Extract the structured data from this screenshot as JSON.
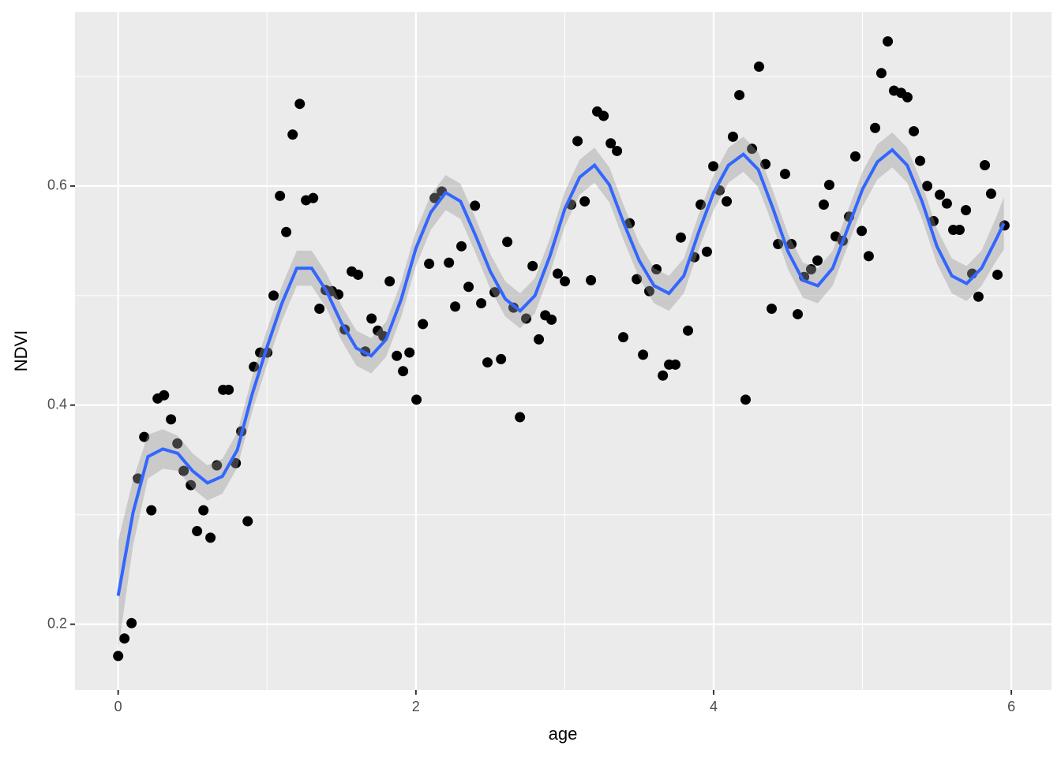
{
  "chart_data": {
    "type": "scatter",
    "x_label": "age",
    "y_label": "NDVI",
    "xlim": [
      -0.29,
      6.27
    ],
    "ylim": [
      0.14,
      0.759
    ],
    "xticks": [
      0,
      2,
      4,
      6
    ],
    "yticks": [
      0.2,
      0.4,
      0.6
    ],
    "xminor": [
      1,
      3,
      5
    ],
    "yminor": [
      0.3,
      0.5,
      0.7
    ],
    "grid": true,
    "panel_color": "#ebebeb",
    "points": {
      "color": "#000000",
      "x": [
        0,
        0.042,
        0.09,
        0.133,
        0.175,
        0.223,
        0.265,
        0.308,
        0.355,
        0.398,
        0.44,
        0.488,
        0.53,
        0.573,
        0.62,
        0.663,
        0.705,
        0.742,
        0.79,
        0.827,
        0.87,
        0.912,
        0.954,
        1.002,
        1.044,
        1.087,
        1.129,
        1.172,
        1.22,
        1.262,
        1.31,
        1.352,
        1.394,
        1.437,
        1.479,
        1.522,
        1.569,
        1.612,
        1.66,
        1.702,
        1.744,
        1.782,
        1.824,
        1.872,
        1.914,
        1.957,
        2.004,
        2.047,
        2.089,
        2.126,
        2.174,
        2.222,
        2.264,
        2.306,
        2.354,
        2.397,
        2.439,
        2.481,
        2.529,
        2.572,
        2.614,
        2.656,
        2.699,
        2.741,
        2.784,
        2.826,
        2.869,
        2.911,
        2.953,
        3.001,
        3.043,
        3.086,
        3.134,
        3.176,
        3.218,
        3.261,
        3.309,
        3.351,
        3.393,
        3.436,
        3.484,
        3.526,
        3.568,
        3.616,
        3.659,
        3.701,
        3.743,
        3.78,
        3.828,
        3.871,
        3.913,
        3.955,
        3.998,
        4.04,
        4.088,
        4.13,
        4.173,
        4.215,
        4.258,
        4.305,
        4.348,
        4.39,
        4.433,
        4.48,
        4.523,
        4.565,
        4.608,
        4.655,
        4.698,
        4.74,
        4.777,
        4.82,
        4.867,
        4.91,
        4.952,
        4.995,
        5.042,
        5.085,
        5.127,
        5.17,
        5.212,
        5.26,
        5.302,
        5.345,
        5.387,
        5.435,
        5.477,
        5.52,
        5.567,
        5.61,
        5.652,
        5.695,
        5.737,
        5.779,
        5.822,
        5.864,
        5.907,
        5.954
      ],
      "y": [
        0.171,
        0.187,
        0.201,
        0.333,
        0.371,
        0.304,
        0.406,
        0.409,
        0.387,
        0.365,
        0.34,
        0.327,
        0.285,
        0.304,
        0.279,
        0.345,
        0.414,
        0.414,
        0.347,
        0.376,
        0.294,
        0.435,
        0.448,
        0.448,
        0.5,
        0.591,
        0.558,
        0.647,
        0.675,
        0.587,
        0.589,
        0.488,
        0.505,
        0.504,
        0.501,
        0.469,
        0.522,
        0.519,
        0.449,
        0.479,
        0.468,
        0.463,
        0.513,
        0.445,
        0.431,
        0.448,
        0.405,
        0.474,
        0.529,
        0.589,
        0.595,
        0.53,
        0.49,
        0.545,
        0.508,
        0.582,
        0.493,
        0.439,
        0.503,
        0.442,
        0.549,
        0.489,
        0.389,
        0.479,
        0.527,
        0.46,
        0.482,
        0.478,
        0.52,
        0.513,
        0.583,
        0.641,
        0.586,
        0.514,
        0.668,
        0.664,
        0.639,
        0.632,
        0.462,
        0.566,
        0.515,
        0.446,
        0.504,
        0.524,
        0.427,
        0.437,
        0.437,
        0.553,
        0.468,
        0.535,
        0.583,
        0.54,
        0.618,
        0.596,
        0.586,
        0.645,
        0.683,
        0.405,
        0.634,
        0.709,
        0.62,
        0.488,
        0.547,
        0.611,
        0.547,
        0.483,
        0.517,
        0.524,
        0.532,
        0.583,
        0.601,
        0.554,
        0.55,
        0.572,
        0.627,
        0.559,
        0.536,
        0.653,
        0.703,
        0.732,
        0.687,
        0.685,
        0.681,
        0.65,
        0.623,
        0.6,
        0.568,
        0.592,
        0.584,
        0.56,
        0.56,
        0.578,
        0.52,
        0.499,
        0.619,
        0.593,
        0.519,
        0.564
      ]
    },
    "smooth": {
      "color": "#3366ff",
      "band_color": "#999999",
      "x": [
        0,
        0.1,
        0.2,
        0.3,
        0.4,
        0.5,
        0.6,
        0.7,
        0.8,
        0.9,
        1.0,
        1.1,
        1.2,
        1.3,
        1.4,
        1.5,
        1.6,
        1.7,
        1.8,
        1.9,
        2.0,
        2.1,
        2.2,
        2.3,
        2.4,
        2.5,
        2.6,
        2.7,
        2.8,
        2.9,
        3.0,
        3.1,
        3.2,
        3.3,
        3.4,
        3.5,
        3.6,
        3.7,
        3.8,
        3.9,
        4.0,
        4.1,
        4.2,
        4.3,
        4.4,
        4.5,
        4.6,
        4.7,
        4.8,
        4.9,
        5.0,
        5.1,
        5.2,
        5.3,
        5.4,
        5.5,
        5.6,
        5.7,
        5.8,
        5.9,
        5.95
      ],
      "y": [
        0.226,
        0.302,
        0.353,
        0.36,
        0.356,
        0.34,
        0.329,
        0.335,
        0.359,
        0.41,
        0.453,
        0.493,
        0.525,
        0.525,
        0.504,
        0.475,
        0.452,
        0.445,
        0.46,
        0.496,
        0.543,
        0.576,
        0.594,
        0.586,
        0.555,
        0.522,
        0.497,
        0.486,
        0.5,
        0.536,
        0.579,
        0.608,
        0.619,
        0.601,
        0.565,
        0.532,
        0.509,
        0.502,
        0.518,
        0.558,
        0.594,
        0.619,
        0.629,
        0.615,
        0.579,
        0.54,
        0.514,
        0.509,
        0.525,
        0.561,
        0.597,
        0.622,
        0.633,
        0.619,
        0.586,
        0.545,
        0.518,
        0.511,
        0.525,
        0.552,
        0.566
      ],
      "lower": [
        0.176,
        0.272,
        0.333,
        0.342,
        0.34,
        0.324,
        0.313,
        0.319,
        0.343,
        0.394,
        0.437,
        0.477,
        0.509,
        0.509,
        0.488,
        0.459,
        0.436,
        0.429,
        0.444,
        0.48,
        0.527,
        0.56,
        0.578,
        0.57,
        0.539,
        0.506,
        0.481,
        0.47,
        0.484,
        0.52,
        0.563,
        0.592,
        0.603,
        0.585,
        0.549,
        0.516,
        0.493,
        0.486,
        0.502,
        0.542,
        0.578,
        0.603,
        0.613,
        0.599,
        0.563,
        0.524,
        0.498,
        0.493,
        0.509,
        0.545,
        0.581,
        0.606,
        0.617,
        0.603,
        0.57,
        0.529,
        0.502,
        0.495,
        0.509,
        0.532,
        0.542
      ],
      "upper": [
        0.276,
        0.332,
        0.373,
        0.378,
        0.372,
        0.356,
        0.345,
        0.351,
        0.375,
        0.426,
        0.469,
        0.509,
        0.541,
        0.541,
        0.52,
        0.491,
        0.468,
        0.461,
        0.476,
        0.512,
        0.559,
        0.592,
        0.61,
        0.602,
        0.571,
        0.538,
        0.513,
        0.502,
        0.516,
        0.552,
        0.595,
        0.624,
        0.635,
        0.617,
        0.581,
        0.548,
        0.525,
        0.518,
        0.534,
        0.574,
        0.61,
        0.635,
        0.645,
        0.631,
        0.595,
        0.556,
        0.53,
        0.525,
        0.541,
        0.577,
        0.613,
        0.638,
        0.649,
        0.635,
        0.602,
        0.561,
        0.534,
        0.527,
        0.541,
        0.572,
        0.59
      ]
    }
  }
}
